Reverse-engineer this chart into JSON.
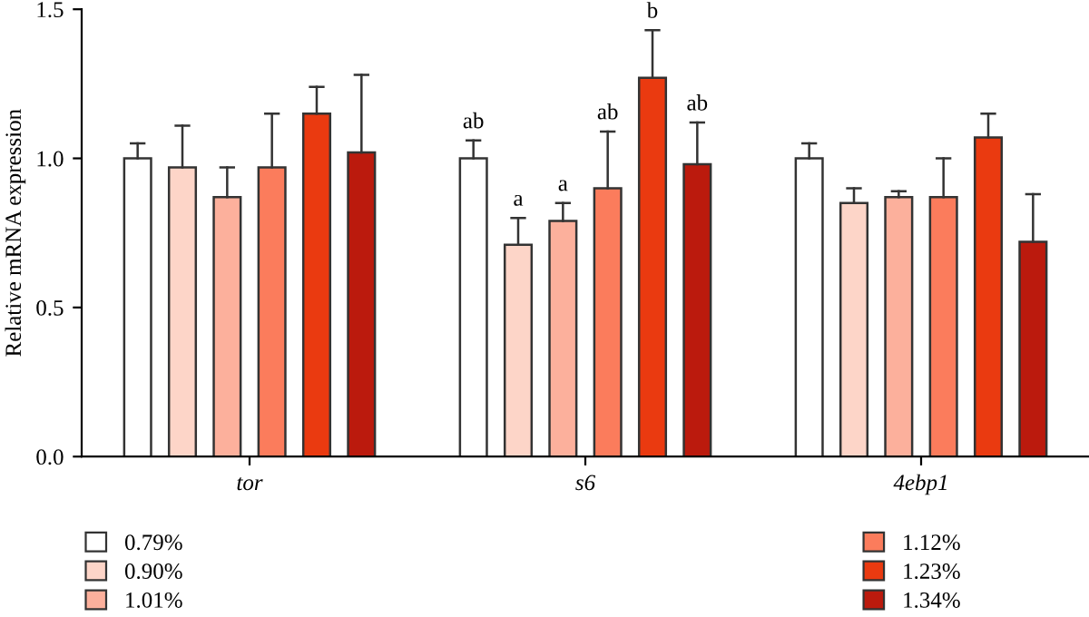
{
  "chart_data": {
    "type": "bar",
    "ylabel": "Relative mRNA expression",
    "categories": [
      "tor",
      "s6",
      "4ebp1"
    ],
    "series": [
      {
        "name": "0.79%",
        "color": "#ffffff",
        "values": [
          1.0,
          1.0,
          1.0
        ],
        "errors": [
          [
            1.0,
            1.05
          ],
          [
            1.0,
            1.06
          ],
          [
            1.0,
            1.05
          ]
        ]
      },
      {
        "name": "0.90%",
        "color": "#fdd5c8",
        "values": [
          0.97,
          0.71,
          0.85
        ],
        "errors": [
          [
            0.97,
            1.11
          ],
          [
            0.71,
            0.8
          ],
          [
            0.85,
            0.9
          ]
        ]
      },
      {
        "name": "1.01%",
        "color": "#fcb09c",
        "values": [
          0.87,
          0.79,
          0.87
        ],
        "errors": [
          [
            0.87,
            0.97
          ],
          [
            0.79,
            0.85
          ],
          [
            0.87,
            0.89
          ]
        ]
      },
      {
        "name": "1.12%",
        "color": "#fb7c5c",
        "values": [
          0.97,
          0.9,
          0.87
        ],
        "errors": [
          [
            0.97,
            1.15
          ],
          [
            0.9,
            1.09
          ],
          [
            0.87,
            1.0
          ]
        ]
      },
      {
        "name": "1.23%",
        "color": "#ea3a10",
        "values": [
          1.15,
          1.27,
          1.07
        ],
        "errors": [
          [
            1.15,
            1.24
          ],
          [
            1.27,
            1.43
          ],
          [
            1.07,
            1.15
          ]
        ]
      },
      {
        "name": "1.34%",
        "color": "#bb1a0d",
        "values": [
          1.02,
          0.98,
          0.72
        ],
        "errors": [
          [
            1.02,
            1.28
          ],
          [
            0.98,
            1.12
          ],
          [
            0.72,
            0.88
          ]
        ]
      }
    ],
    "ylim": [
      0,
      1.5
    ],
    "yticks": [
      {
        "value": 0,
        "label": "0.0"
      },
      {
        "value": 0.5,
        "label": "0.5"
      },
      {
        "value": 1,
        "label": "1.0"
      },
      {
        "value": 1.5,
        "label": "1.5"
      }
    ],
    "annotations": [
      "ab",
      "a",
      "a",
      "ab",
      "b",
      "ab"
    ],
    "legend": "bottom",
    "grid": false
  }
}
